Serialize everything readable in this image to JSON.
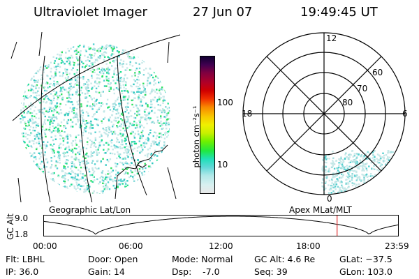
{
  "header": {
    "instrument": "Ultraviolet Imager",
    "date": "27 Jun 07",
    "time": "19:49:45 UT"
  },
  "colorbar": {
    "unit_label": "photon cm⁻²s⁻¹",
    "ticks": [
      {
        "value": 100,
        "label": "100"
      },
      {
        "value": 10,
        "label": "10"
      }
    ],
    "scale": "log",
    "colors": [
      "#e8e8e8",
      "#d8f0f0",
      "#b0e8e8",
      "#60d8d8",
      "#20e0b8",
      "#20e840",
      "#70f000",
      "#c8f000",
      "#f0f000",
      "#f8c800",
      "#f88800",
      "#f03000",
      "#d00000",
      "#b00028",
      "#800040",
      "#400050",
      "#100030"
    ]
  },
  "left_panel": {
    "caption": "Geographic Lat/Lon",
    "dot_colors": [
      "#c8e8e8",
      "#a8e0e0",
      "#80d8d8",
      "#50d0d0",
      "#30c8c0",
      "#20e090",
      "#30e060"
    ]
  },
  "right_panel": {
    "caption": "Apex  MLat/MLT",
    "mlt_labels": {
      "top": "12",
      "left": "18",
      "right": "6",
      "bottom": "0"
    },
    "lat_labels": [
      "60",
      "70",
      "80"
    ]
  },
  "altitude_plot": {
    "ylabel": "GC Alt",
    "ytick_labels": [
      "9.0",
      "1.8"
    ],
    "xtick_labels": [
      "00:00",
      "06:00",
      "12:00",
      "18:00",
      "23:59"
    ],
    "current_time_hours": 19.83,
    "marker_color": "#e03030"
  },
  "status": {
    "flt": "Flt: LBHL",
    "ip": "IP: 36.0",
    "door": "Door: Open",
    "gain": "Gain: 14",
    "mode": "Mode: Normal",
    "dsp": "Dsp:    -7.0",
    "gc_alt": "GC Alt: 4.6 Re",
    "seq": "Seq: 39",
    "glat": "GLat: −37.5",
    "glon": "GLon: 103.0"
  }
}
